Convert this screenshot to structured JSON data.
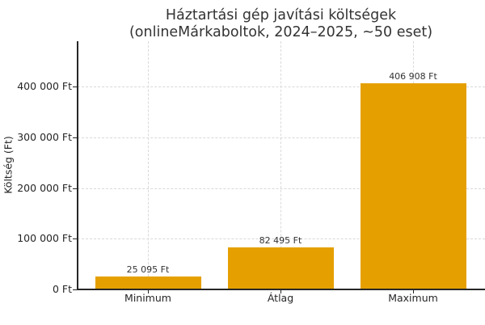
{
  "chart_data": {
    "type": "bar",
    "title": "Háztartási gép javítási költségek",
    "subtitle": "(onlineMárkaboltok, 2024–2025, ~50 eset)",
    "xlabel": "",
    "ylabel": "Költség (Ft)",
    "categories": [
      "Minimum",
      "Átlag",
      "Maximum"
    ],
    "values": [
      25095,
      82495,
      406908
    ],
    "value_labels": [
      "25 095 Ft",
      "82 495 Ft",
      "406 908 Ft"
    ],
    "ylim": [
      0,
      490000
    ],
    "yticks": [
      0,
      100000,
      200000,
      300000,
      400000
    ],
    "ytick_labels": [
      "0 Ft",
      "100 000 Ft",
      "200 000 Ft",
      "300 000 Ft",
      "400 000 Ft"
    ],
    "grid": true,
    "legend": null,
    "bar_color": "#e5a000"
  }
}
